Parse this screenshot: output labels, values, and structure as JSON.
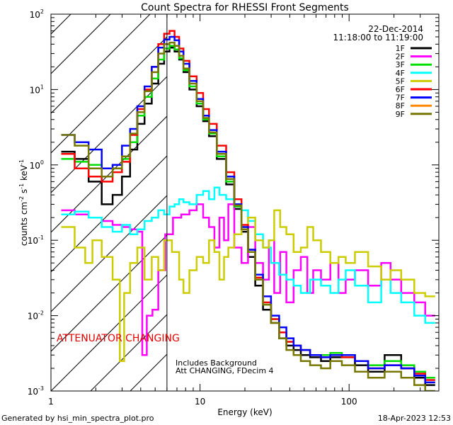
{
  "chart_data": {
    "type": "line",
    "title": "Count Spectra for RHESSI Front Segments",
    "xlabel": "Energy (keV)",
    "ylabel": "counts cm-2 s-1 keV-1",
    "ylabel_parts": {
      "base": "counts cm",
      "e1": "-2",
      "mid1": " s",
      "e2": "-1",
      "mid2": " keV",
      "e3": "-1"
    },
    "xscale": "log",
    "yscale": "log",
    "xlim": [
      1,
      400
    ],
    "ylim": [
      0.001,
      100
    ],
    "x_ticks": [
      {
        "value": 1,
        "label": "1"
      },
      {
        "value": 10,
        "label": "10"
      },
      {
        "value": 100,
        "label": "100"
      }
    ],
    "y_ticks": [
      {
        "value": 0.001,
        "base": "10",
        "exp": "-3"
      },
      {
        "value": 0.01,
        "base": "10",
        "exp": "-2"
      },
      {
        "value": 0.1,
        "base": "10",
        "exp": "-1"
      },
      {
        "value": 1,
        "base": "10",
        "exp": "0"
      },
      {
        "value": 10,
        "base": "10",
        "exp": "1"
      },
      {
        "value": 100,
        "base": "10",
        "exp": "2"
      }
    ],
    "date_label": "22-Dec-2014",
    "time_range_label": "11:18:00 to 11:19:00",
    "attenuator_text": "ATTENUATOR CHANGING",
    "attenuator_edge_keV": 6,
    "background_note": "Includes Background",
    "att_note": "Att CHANGING, FDecim 4",
    "legend_position": "top-right",
    "series": [
      {
        "name": "1F",
        "color": "#000000",
        "x": [
          1.3,
          1.6,
          2.0,
          2.4,
          2.8,
          3.2,
          3.6,
          4.0,
          4.5,
          5.0,
          5.5,
          6.0,
          6.5,
          7.0,
          7.5,
          8.0,
          9.0,
          10.0,
          11.0,
          12.0,
          14.0,
          16.0,
          18.0,
          20.0,
          22.0,
          25.0,
          28.0,
          32.0,
          36.0,
          40.0,
          45.0,
          50.0,
          60.0,
          70.0,
          80.0,
          100.0,
          120.0,
          150.0,
          200.0,
          250.0,
          300.0,
          350.0
        ],
        "y": [
          1.5,
          1.2,
          0.6,
          0.3,
          0.4,
          0.7,
          1.6,
          3.5,
          6.5,
          12,
          22,
          32,
          36,
          32,
          25,
          17,
          10,
          6.0,
          3.8,
          2.4,
          1.2,
          0.55,
          0.26,
          0.13,
          0.06,
          0.025,
          0.012,
          0.008,
          0.005,
          0.004,
          0.0035,
          0.003,
          0.0028,
          0.0025,
          0.0028,
          0.003,
          0.0022,
          0.0018,
          0.003,
          0.002,
          0.0015,
          0.0012
        ]
      },
      {
        "name": "2F",
        "color": "#ff00ff",
        "x": [
          1.3,
          1.6,
          2.0,
          2.4,
          2.8,
          3.2,
          3.6,
          4.0,
          4.2,
          4.6,
          5.0,
          5.5,
          6.2,
          7.0,
          8.0,
          9.0,
          10.0,
          11.0,
          12.0,
          13.0,
          14.0,
          15.0,
          16.0,
          18.0,
          20.0,
          22.0,
          25.0,
          28.0,
          30.0,
          33.0,
          36.0,
          40.0,
          45.0,
          50.0,
          55.0,
          60.0,
          70.0,
          80.0,
          90.0,
          100.0,
          120.0,
          150.0,
          180.0,
          200.0,
          250.0,
          300.0,
          350.0
        ],
        "y": [
          0.25,
          0.22,
          0.2,
          0.18,
          0.16,
          0.15,
          0.14,
          0.13,
          0.003,
          0.01,
          0.012,
          0.04,
          0.12,
          0.2,
          0.22,
          0.25,
          0.3,
          0.2,
          0.15,
          0.08,
          0.2,
          0.1,
          0.3,
          0.08,
          0.05,
          0.15,
          0.05,
          0.03,
          0.1,
          0.02,
          0.07,
          0.015,
          0.04,
          0.06,
          0.02,
          0.04,
          0.03,
          0.05,
          0.02,
          0.03,
          0.04,
          0.025,
          0.05,
          0.03,
          0.02,
          0.015,
          0.01
        ]
      },
      {
        "name": "3F",
        "color": "#00dd00",
        "x": [
          1.3,
          1.6,
          2.0,
          2.4,
          2.8,
          3.2,
          3.6,
          4.0,
          4.5,
          5.0,
          5.5,
          6.0,
          6.5,
          7.0,
          7.5,
          8.0,
          9.0,
          10.0,
          11.0,
          12.0,
          14.0,
          16.0,
          18.0,
          20.0,
          22.0,
          25.0,
          28.0,
          32.0,
          36.0,
          40.0,
          45.0,
          50.0,
          60.0,
          70.0,
          80.0,
          100.0,
          120.0,
          150.0,
          200.0,
          250.0,
          300.0,
          350.0
        ],
        "y": [
          1.2,
          1.1,
          1.0,
          0.9,
          1.0,
          1.2,
          2.0,
          4.5,
          8.0,
          14,
          25,
          35,
          38,
          34,
          26,
          18,
          11,
          6.5,
          4.0,
          2.6,
          1.3,
          0.6,
          0.28,
          0.14,
          0.07,
          0.03,
          0.014,
          0.009,
          0.006,
          0.0045,
          0.004,
          0.0035,
          0.003,
          0.003,
          0.0032,
          0.0028,
          0.0025,
          0.0022,
          0.0025,
          0.0022,
          0.0018,
          0.0015
        ]
      },
      {
        "name": "4F",
        "color": "#00ffff",
        "x": [
          1.3,
          1.6,
          2.0,
          2.4,
          2.8,
          3.2,
          3.6,
          4.0,
          4.5,
          5.0,
          5.5,
          6.0,
          6.5,
          7.0,
          7.5,
          8.0,
          9.0,
          10.0,
          11.0,
          12.0,
          13.0,
          14.0,
          16.0,
          18.0,
          20.0,
          22.0,
          25.0,
          28.0,
          32.0,
          36.0,
          40.0,
          45.0,
          50.0,
          60.0,
          70.0,
          80.0,
          90.0,
          100.0,
          120.0,
          150.0,
          180.0,
          200.0,
          250.0,
          300.0,
          350.0
        ],
        "y": [
          0.22,
          0.24,
          0.2,
          0.15,
          0.13,
          0.16,
          0.12,
          0.14,
          0.18,
          0.2,
          0.25,
          0.22,
          0.28,
          0.3,
          0.35,
          0.32,
          0.3,
          0.4,
          0.45,
          0.35,
          0.5,
          0.4,
          0.35,
          0.3,
          0.25,
          0.18,
          0.12,
          0.08,
          0.05,
          0.035,
          0.03,
          0.025,
          0.02,
          0.03,
          0.025,
          0.02,
          0.03,
          0.04,
          0.025,
          0.015,
          0.03,
          0.02,
          0.015,
          0.01,
          0.008
        ]
      },
      {
        "name": "5F",
        "color": "#cccc00",
        "x": [
          1.3,
          1.6,
          1.8,
          2.0,
          2.4,
          2.8,
          3.0,
          3.2,
          3.6,
          4.0,
          4.5,
          5.0,
          5.5,
          6.0,
          7.0,
          7.5,
          8.0,
          9.0,
          10.0,
          11.0,
          12.0,
          13.0,
          14.0,
          15.0,
          16.0,
          18.0,
          20.0,
          22.0,
          25.0,
          28.0,
          30.0,
          33.0,
          36.0,
          40.0,
          45.0,
          50.0,
          55.0,
          60.0,
          70.0,
          80.0,
          90.0,
          100.0,
          120.0,
          150.0,
          180.0,
          200.0,
          250.0,
          300.0,
          350.0
        ],
        "y": [
          0.15,
          0.08,
          0.05,
          0.1,
          0.06,
          0.03,
          0.0025,
          0.02,
          0.05,
          0.08,
          0.03,
          0.06,
          0.04,
          0.1,
          0.07,
          0.03,
          0.02,
          0.04,
          0.06,
          0.05,
          0.1,
          0.07,
          0.03,
          0.06,
          0.08,
          0.12,
          0.15,
          0.2,
          0.1,
          0.08,
          0.1,
          0.25,
          0.15,
          0.12,
          0.07,
          0.08,
          0.15,
          0.1,
          0.07,
          0.05,
          0.06,
          0.05,
          0.07,
          0.045,
          0.03,
          0.04,
          0.03,
          0.02,
          0.018
        ]
      },
      {
        "name": "6F",
        "color": "#ff0000",
        "x": [
          1.3,
          1.6,
          2.0,
          2.4,
          2.8,
          3.2,
          3.6,
          4.0,
          4.5,
          5.0,
          5.5,
          6.0,
          6.5,
          7.0,
          7.5,
          8.0,
          9.0,
          10.0,
          11.0,
          12.0,
          14.0,
          16.0,
          18.0,
          20.0,
          22.0,
          25.0,
          28.0,
          32.0,
          36.0,
          40.0,
          45.0,
          50.0,
          60.0,
          70.0,
          80.0,
          100.0,
          120.0,
          150.0,
          200.0,
          250.0,
          300.0,
          350.0
        ],
        "y": [
          1.4,
          0.9,
          0.7,
          0.6,
          0.8,
          1.1,
          2.5,
          5.5,
          10,
          20,
          40,
          55,
          60,
          50,
          35,
          24,
          15,
          9.0,
          5.5,
          3.5,
          1.8,
          0.8,
          0.35,
          0.16,
          0.075,
          0.032,
          0.015,
          0.009,
          0.006,
          0.0045,
          0.004,
          0.0035,
          0.003,
          0.0028,
          0.003,
          0.0028,
          0.0025,
          0.002,
          0.0022,
          0.002,
          0.0017,
          0.0014
        ]
      },
      {
        "name": "7F",
        "color": "#0000ff",
        "x": [
          1.3,
          1.6,
          2.0,
          2.4,
          2.8,
          3.2,
          3.6,
          4.0,
          4.5,
          5.0,
          5.5,
          6.0,
          6.5,
          7.0,
          7.5,
          8.0,
          9.0,
          10.0,
          11.0,
          12.0,
          14.0,
          16.0,
          18.0,
          20.0,
          22.0,
          25.0,
          28.0,
          32.0,
          36.0,
          40.0,
          45.0,
          50.0,
          60.0,
          70.0,
          80.0,
          100.0,
          120.0,
          150.0,
          200.0,
          250.0,
          300.0,
          350.0
        ],
        "y": [
          2.5,
          2.0,
          1.6,
          0.9,
          1.0,
          1.8,
          3.0,
          6.0,
          11,
          20,
          36,
          46,
          50,
          45,
          32,
          22,
          13,
          7.5,
          4.5,
          2.9,
          1.5,
          0.7,
          0.3,
          0.15,
          0.075,
          0.035,
          0.018,
          0.01,
          0.007,
          0.005,
          0.004,
          0.0035,
          0.003,
          0.0028,
          0.003,
          0.003,
          0.0025,
          0.002,
          0.0022,
          0.002,
          0.0016,
          0.0013
        ]
      },
      {
        "name": "8F",
        "color": "#ff8800",
        "x": [],
        "y": []
      },
      {
        "name": "9F",
        "color": "#777700",
        "x": [
          1.3,
          1.6,
          2.0,
          2.4,
          2.8,
          3.2,
          3.6,
          4.0,
          4.5,
          5.0,
          5.5,
          6.0,
          6.5,
          7.0,
          7.5,
          8.0,
          9.0,
          10.0,
          11.0,
          12.0,
          14.0,
          16.0,
          18.0,
          20.0,
          22.0,
          25.0,
          28.0,
          32.0,
          36.0,
          40.0,
          45.0,
          50.0,
          60.0,
          70.0,
          80.0,
          100.0,
          120.0,
          150.0,
          200.0,
          250.0,
          300.0,
          350.0
        ],
        "y": [
          2.5,
          1.8,
          0.9,
          0.7,
          0.9,
          1.3,
          2.6,
          5.0,
          9.5,
          17,
          30,
          40,
          42,
          38,
          28,
          19,
          12,
          7.0,
          4.2,
          2.7,
          1.4,
          0.65,
          0.29,
          0.14,
          0.07,
          0.03,
          0.014,
          0.008,
          0.005,
          0.0035,
          0.003,
          0.0025,
          0.0022,
          0.002,
          0.0025,
          0.0022,
          0.0018,
          0.0015,
          0.0018,
          0.0015,
          0.0012,
          0.001
        ]
      }
    ]
  },
  "footer": {
    "generated_by": "Generated by hsi_min_spectra_plot.pro",
    "timestamp": "18-Apr-2023 12:53"
  }
}
